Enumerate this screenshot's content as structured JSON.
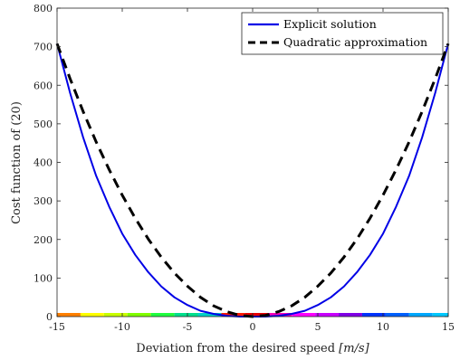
{
  "chart_data": {
    "type": "line",
    "xlabel_text": "Deviation from the desired speed ",
    "xlabel_unit": "[m/s]",
    "ylabel": "Cost function of (20)",
    "xlim": [
      -15,
      15
    ],
    "ylim": [
      0,
      800
    ],
    "xticks": [
      -15,
      -10,
      -5,
      0,
      5,
      10,
      15
    ],
    "yticks": [
      0,
      100,
      200,
      300,
      400,
      500,
      600,
      700,
      800
    ],
    "grid": false,
    "legend_position": "top-right",
    "x": [
      -15,
      -14,
      -13,
      -12,
      -11,
      -10,
      -9,
      -8,
      -7,
      -6,
      -5,
      -4,
      -3,
      -2,
      -1,
      0,
      1,
      2,
      3,
      4,
      5,
      6,
      7,
      8,
      9,
      10,
      11,
      12,
      13,
      14,
      15
    ],
    "series": [
      {
        "name": "Explicit solution",
        "color": "#0000e6",
        "style": "solid",
        "values": [
          708,
          580,
          465,
          365,
          285,
          215,
          160,
          115,
          78,
          50,
          30,
          15,
          7,
          2,
          0,
          0,
          0,
          2,
          7,
          15,
          30,
          50,
          78,
          115,
          160,
          215,
          285,
          365,
          465,
          580,
          708
        ]
      },
      {
        "name": "Quadratic approximation",
        "color": "#000000",
        "style": "dashed",
        "values": [
          708,
          617,
          532,
          453,
          381,
          315,
          255,
          201,
          154,
          113,
          79,
          50,
          28,
          13,
          3,
          0,
          3,
          13,
          28,
          50,
          79,
          113,
          154,
          201,
          255,
          315,
          381,
          453,
          532,
          617,
          708
        ]
      }
    ],
    "color_bar": {
      "edges": [
        -15,
        -13.2,
        -11.4,
        -9.6,
        -7.8,
        -6,
        -4.2,
        -2.4,
        -0.6,
        1.2,
        3,
        4.8,
        6.6,
        8.4,
        10.2,
        12,
        13.8,
        15
      ],
      "colors": [
        "#ff7f00",
        "#ffff00",
        "#c8ff00",
        "#80ff00",
        "#20ff40",
        "#00e08c",
        "#00d0c8",
        "#ff1a00",
        "#e80000",
        "#ff00b4",
        "#ff00ff",
        "#c800ff",
        "#8000e6",
        "#0033ff",
        "#0060ff",
        "#00a8ff",
        "#00c8ff"
      ]
    }
  }
}
